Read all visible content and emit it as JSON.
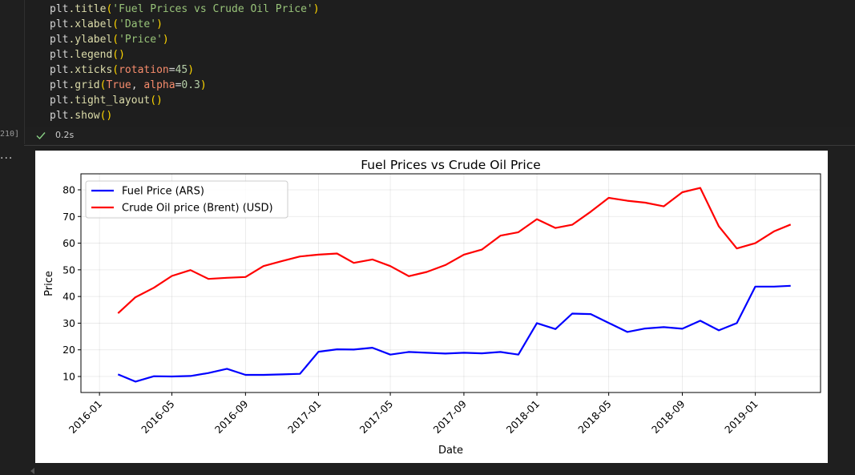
{
  "notebook": {
    "code_lines": [
      [
        {
          "t": "plt",
          "c": "obj"
        },
        {
          "t": ".title",
          "c": "fn"
        },
        {
          "t": "(",
          "c": "paren"
        },
        {
          "t": "'Fuel Prices vs Crude Oil Price'",
          "c": "str green"
        },
        {
          "t": ")",
          "c": "paren"
        }
      ],
      [
        {
          "t": "plt",
          "c": "obj"
        },
        {
          "t": ".xlabel",
          "c": "fn"
        },
        {
          "t": "(",
          "c": "paren"
        },
        {
          "t": "'Date'",
          "c": "str green"
        },
        {
          "t": ")",
          "c": "paren"
        }
      ],
      [
        {
          "t": "plt",
          "c": "obj"
        },
        {
          "t": ".ylabel",
          "c": "fn"
        },
        {
          "t": "(",
          "c": "paren"
        },
        {
          "t": "'Price'",
          "c": "str green"
        },
        {
          "t": ")",
          "c": "paren"
        }
      ],
      [
        {
          "t": "plt",
          "c": "obj"
        },
        {
          "t": ".legend",
          "c": "fn"
        },
        {
          "t": "()",
          "c": "paren"
        }
      ],
      [
        {
          "t": "plt",
          "c": "obj"
        },
        {
          "t": ".xticks",
          "c": "fn"
        },
        {
          "t": "(",
          "c": "paren"
        },
        {
          "t": "rotation",
          "c": "kw"
        },
        {
          "t": "=",
          "c": "obj"
        },
        {
          "t": "45",
          "c": "num"
        },
        {
          "t": ")",
          "c": "paren"
        }
      ],
      [
        {
          "t": "plt",
          "c": "obj"
        },
        {
          "t": ".grid",
          "c": "fn"
        },
        {
          "t": "(",
          "c": "paren"
        },
        {
          "t": "True",
          "c": "bool"
        },
        {
          "t": ", ",
          "c": "obj"
        },
        {
          "t": "alpha",
          "c": "kw"
        },
        {
          "t": "=",
          "c": "obj"
        },
        {
          "t": "0.3",
          "c": "num"
        },
        {
          "t": ")",
          "c": "paren"
        }
      ],
      [
        {
          "t": "plt",
          "c": "obj"
        },
        {
          "t": ".tight_layout",
          "c": "fn"
        },
        {
          "t": "()",
          "c": "paren"
        }
      ],
      [
        {
          "t": "plt",
          "c": "obj"
        },
        {
          "t": ".show",
          "c": "fn"
        },
        {
          "t": "()",
          "c": "paren"
        }
      ]
    ],
    "exec_count": "210]",
    "exec_time": "0.2s",
    "output_menu": "..."
  },
  "chart_data": {
    "type": "line",
    "title": "Fuel Prices vs Crude Oil Price",
    "xlabel": "Date",
    "ylabel": "Price",
    "ylim": [
      4,
      86
    ],
    "xlim": [
      "2015-12-01",
      "2019-04-20"
    ],
    "x_tick_labels": [
      "2016-01",
      "2016-05",
      "2016-09",
      "2017-01",
      "2017-05",
      "2017-09",
      "2018-01",
      "2018-05",
      "2018-09",
      "2019-01"
    ],
    "y_ticks": [
      10,
      20,
      30,
      40,
      50,
      60,
      70,
      80
    ],
    "grid": true,
    "legend_position": "upper-left",
    "x": [
      "2016-02",
      "2016-03",
      "2016-04",
      "2016-05",
      "2016-06",
      "2016-07",
      "2016-08",
      "2016-09",
      "2016-10",
      "2016-11",
      "2016-12",
      "2017-01",
      "2017-02",
      "2017-03",
      "2017-04",
      "2017-05",
      "2017-06",
      "2017-07",
      "2017-08",
      "2017-09",
      "2017-10",
      "2017-11",
      "2017-12",
      "2018-01",
      "2018-02",
      "2018-03",
      "2018-04",
      "2018-05",
      "2018-06",
      "2018-07",
      "2018-08",
      "2018-09",
      "2018-10",
      "2018-11",
      "2018-12",
      "2019-01",
      "2019-02",
      "2019-03"
    ],
    "series": [
      {
        "name": "Fuel Price (ARS)",
        "color": "#0000ff",
        "values": [
          10.8,
          8.1,
          10.1,
          10.0,
          10.2,
          11.3,
          12.9,
          10.6,
          10.6,
          10.8,
          11.0,
          19.3,
          20.2,
          20.1,
          20.8,
          18.2,
          19.2,
          18.9,
          18.6,
          18.9,
          18.7,
          19.2,
          18.2,
          30.0,
          27.8,
          33.6,
          33.4,
          30.1,
          26.7,
          28.0,
          28.5,
          27.9,
          30.9,
          27.3,
          30.0,
          43.7,
          43.7,
          44.0
        ]
      },
      {
        "name": "Crude Oil price (Brent) (USD)",
        "color": "#ff0000",
        "values": [
          33.7,
          39.7,
          43.3,
          47.7,
          49.9,
          46.6,
          47.0,
          47.3,
          51.4,
          53.3,
          55.0,
          55.7,
          56.1,
          52.6,
          53.9,
          51.4,
          47.6,
          49.2,
          51.8,
          55.7,
          57.6,
          62.8,
          64.1,
          69.0,
          65.7,
          66.9,
          71.8,
          77.0,
          75.9,
          75.2,
          73.8,
          79.1,
          80.7,
          66.3,
          58.0,
          60.0,
          64.4,
          67.0
        ]
      }
    ]
  }
}
